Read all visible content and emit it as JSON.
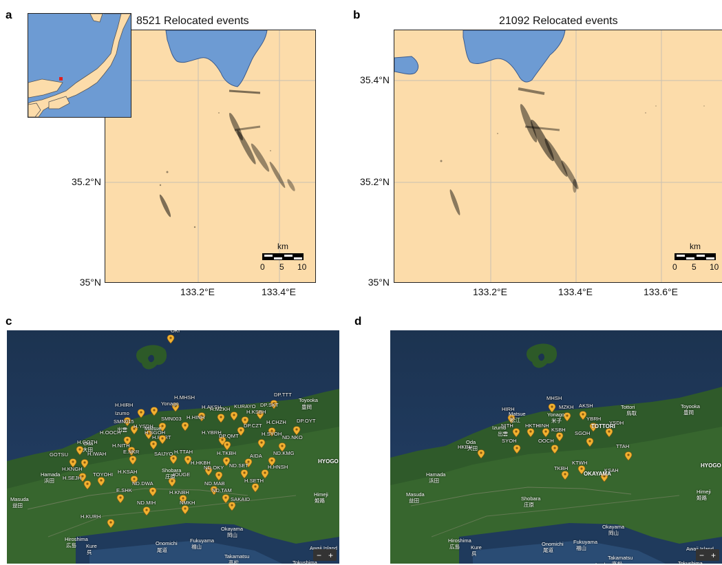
{
  "panels": {
    "a": {
      "label": "a",
      "title": "8521 Relocated events",
      "yticks": [
        "35.2°N",
        "35°N"
      ],
      "xticks": [
        "133.2°E",
        "133.4°E"
      ],
      "scale": {
        "unit": "km",
        "labels": [
          "0",
          "5",
          "10"
        ]
      }
    },
    "b": {
      "label": "b",
      "title": "21092 Relocated events",
      "yticks": [
        "35.4°N",
        "35.2°N",
        "35°N"
      ],
      "xticks": [
        "133.2°E",
        "133.4°E",
        "133.6°E"
      ],
      "scale": {
        "unit": "km",
        "labels": [
          "0",
          "5",
          "10"
        ]
      }
    },
    "c": {
      "label": "c",
      "zoom": [
        "−",
        "+"
      ],
      "stations": [
        "OKI",
        "H.MHSH",
        "H.HIRH",
        "Yonago",
        "H.AKSH",
        "DP.TTT",
        "DP.SKT",
        "H.MZKH",
        "KURAYO",
        "Izumo",
        "SMN015",
        "H.KSBH",
        "SMN003",
        "H.HINH",
        "H.CHZH",
        "DP.OYT",
        "DP.CZT",
        "H.OOCH",
        "H.NITH",
        "H.YSDH",
        "H.PTRT",
        "H.SGOH",
        "H.YBRH",
        "DP.QMT",
        "H.SYOH",
        "ND.NKO",
        "H.GOTH",
        "GOTSU",
        "E.NKR",
        "SAIJYO",
        "H.TTAH",
        "AIDA",
        "ND.KMG",
        "H.IWAH",
        "H.TKBH",
        "H.KNGH",
        "H.SEJH",
        "TOYOHI",
        "H.HKBH",
        "ND.OKY",
        "ND.SET",
        "H.HNSH",
        "H.KSAH",
        "JOUGE",
        "ND.MAB",
        "H.SETH",
        "E.SHK",
        "ND.DWA",
        "H.KNBH",
        "ND.TAM",
        "ND.MIH",
        "NMKH",
        "SAKAID",
        "H.KURH"
      ],
      "places": [
        "Toyooka",
        "豊岡",
        "Oda",
        "大田",
        "Hamada",
        "浜田",
        "Masuda",
        "益田",
        "Shobara",
        "庄原",
        "HYOGO",
        "Himeji",
        "姫路",
        "Okayama",
        "岡山",
        "Hiroshima",
        "広島",
        "Kure",
        "呉",
        "Onomichi",
        "尾道",
        "Fukuyama",
        "福山",
        "Takamatsu",
        "高松",
        "Awaji Island",
        "Tokushima",
        "Matsue",
        "出雲"
      ]
    },
    "d": {
      "label": "d",
      "zoom": [
        "−",
        "+"
      ],
      "stations": [
        "MHSH",
        "AKSH",
        "MZKH",
        "HIRH",
        "NITH",
        "HKTH",
        "HINH",
        "KSBH",
        "YBRH",
        "YSDH",
        "SGOH",
        "SYOH",
        "OOCH",
        "TTAH",
        "HKBH",
        "TKBH",
        "KTWH",
        "KSAH"
      ],
      "places": [
        "Toyooka",
        "豊岡",
        "Tottori",
        "鳥取",
        "TOTTORI",
        "Matsue",
        "松江",
        "Yonago",
        "米子",
        "Izumo",
        "出雲",
        "Oda",
        "大田",
        "Hamada",
        "浜田",
        "Masuda",
        "益田",
        "OKAYAMA",
        "HYOGO",
        "Himeji",
        "姫路",
        "Shobara",
        "庄原",
        "Okayama",
        "岡山",
        "Hiroshima",
        "広島",
        "Kure",
        "呉",
        "Onomichi",
        "尾道",
        "Fukuyama",
        "福山",
        "Takamatsu",
        "高松",
        "Awaji Island",
        "Tokushima",
        "Imabari"
      ]
    }
  },
  "colors": {
    "land": "#fcdcaa",
    "sea": "#6d9bd3",
    "events": "#000000",
    "pin": "#f2b130",
    "inset_marker": "#e02020"
  }
}
